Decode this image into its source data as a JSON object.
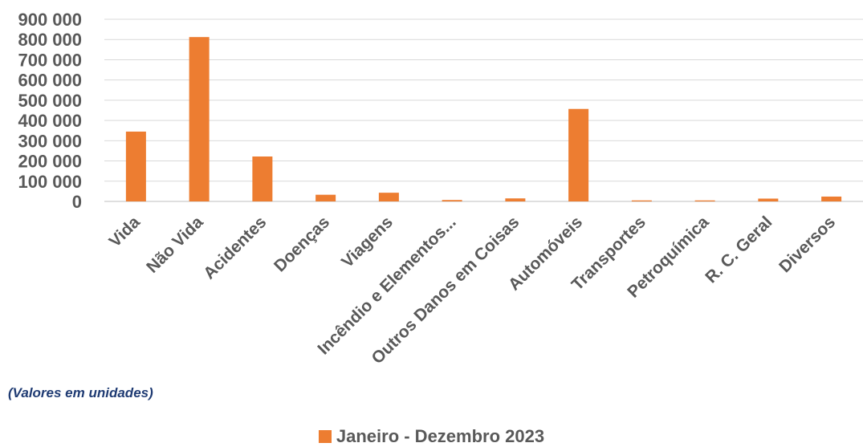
{
  "chart_data": {
    "type": "bar",
    "categories": [
      "Vida",
      "Não Vida",
      "Acidentes",
      "Doenças",
      "Viagens",
      "Incêndio e Elementos...",
      "Outros Danos em Coisas",
      "Automóveis",
      "Transportes",
      "Petroquímica",
      "R. C. Geral",
      "Diversos"
    ],
    "series": [
      {
        "name": "Janeiro - Dezembro 2023",
        "values": [
          345000,
          812000,
          222000,
          33000,
          43000,
          7000,
          15000,
          457000,
          5000,
          5000,
          14000,
          24000
        ]
      }
    ],
    "y_ticks": [
      "900 000",
      "800 000",
      "700 000",
      "600 000",
      "500 000",
      "400 000",
      "300 000",
      "200 000",
      "100 000",
      "0"
    ],
    "ylim": [
      0,
      900000
    ],
    "grid": true,
    "legend_position": "bottom",
    "bar_color": "#ed7d31"
  },
  "note": "(Valores em unidades)"
}
